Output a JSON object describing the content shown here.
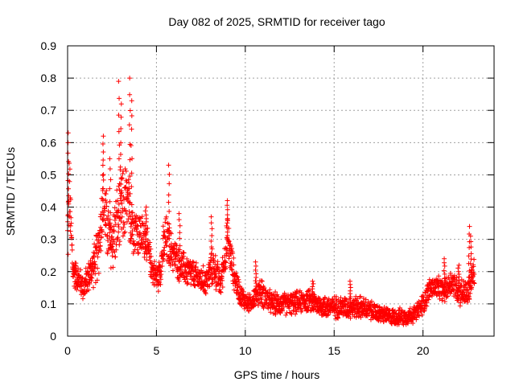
{
  "chart_data": {
    "type": "scatter",
    "title": "Day 082 of 2025, SRMTID for receiver tago",
    "xlabel": "GPS time / hours",
    "ylabel": "SRMTID / TECUs",
    "xlim": [
      0,
      24
    ],
    "ylim": [
      0,
      0.9
    ],
    "grid": true,
    "marker": "+",
    "marker_color": "#ff0000",
    "xticks": [
      0,
      5,
      10,
      15,
      20
    ],
    "xtick_labels": [
      "0",
      "5",
      "10",
      "15",
      "20"
    ],
    "yticks": [
      0,
      0.1,
      0.2,
      0.3,
      0.4,
      0.5,
      0.6,
      0.7,
      0.8,
      0.9
    ],
    "ytick_labels": [
      "0",
      "0.1",
      "0.2",
      "0.3",
      "0.4",
      "0.5",
      "0.6",
      "0.7",
      "0.8",
      "0.9"
    ],
    "series": [
      {
        "name": "SRMTID",
        "profile": {
          "hours": [
            0,
            0.1,
            0.3,
            0.6,
            0.9,
            1.3,
            1.7,
            2.0,
            2.4,
            2.8,
            3.0,
            3.3,
            3.6,
            4.0,
            4.4,
            4.8,
            5.1,
            5.5,
            5.8,
            6.3,
            6.8,
            7.3,
            7.8,
            8.2,
            8.6,
            9.0,
            9.4,
            9.8,
            10.2,
            10.8,
            11.5,
            12.5,
            13.5,
            14.5,
            15.5,
            16.5,
            17.5,
            18.2,
            19.0,
            19.6,
            20.0,
            20.4,
            20.8,
            21.2,
            21.6,
            22.0,
            22.5,
            22.9
          ],
          "median": [
            0.3,
            0.45,
            0.2,
            0.18,
            0.15,
            0.2,
            0.25,
            0.42,
            0.28,
            0.35,
            0.38,
            0.42,
            0.35,
            0.32,
            0.3,
            0.2,
            0.18,
            0.3,
            0.27,
            0.22,
            0.2,
            0.18,
            0.17,
            0.22,
            0.16,
            0.3,
            0.18,
            0.12,
            0.1,
            0.14,
            0.1,
            0.1,
            0.11,
            0.09,
            0.09,
            0.09,
            0.07,
            0.06,
            0.06,
            0.07,
            0.1,
            0.15,
            0.15,
            0.14,
            0.17,
            0.14,
            0.13,
            0.2
          ],
          "spread": [
            0.15,
            0.15,
            0.06,
            0.05,
            0.05,
            0.06,
            0.1,
            0.12,
            0.12,
            0.14,
            0.15,
            0.14,
            0.1,
            0.09,
            0.07,
            0.05,
            0.05,
            0.1,
            0.07,
            0.06,
            0.06,
            0.05,
            0.05,
            0.07,
            0.05,
            0.08,
            0.05,
            0.04,
            0.03,
            0.05,
            0.04,
            0.04,
            0.04,
            0.04,
            0.04,
            0.04,
            0.03,
            0.03,
            0.03,
            0.03,
            0.04,
            0.04,
            0.04,
            0.04,
            0.05,
            0.05,
            0.05,
            0.06
          ]
        },
        "sample_interval_hours": 0.01,
        "peaks": [
          {
            "x": 0.05,
            "y": 0.63
          },
          {
            "x": 0.4,
            "y": 0.22
          },
          {
            "x": 2.0,
            "y": 0.62
          },
          {
            "x": 2.4,
            "y": 0.55
          },
          {
            "x": 2.9,
            "y": 0.79
          },
          {
            "x": 3.0,
            "y": 0.72
          },
          {
            "x": 3.5,
            "y": 0.8
          },
          {
            "x": 3.6,
            "y": 0.73
          },
          {
            "x": 4.4,
            "y": 0.4
          },
          {
            "x": 5.7,
            "y": 0.53
          },
          {
            "x": 6.3,
            "y": 0.38
          },
          {
            "x": 8.1,
            "y": 0.37
          },
          {
            "x": 9.0,
            "y": 0.42
          },
          {
            "x": 10.6,
            "y": 0.23
          },
          {
            "x": 13.8,
            "y": 0.17
          },
          {
            "x": 15.9,
            "y": 0.17
          },
          {
            "x": 21.2,
            "y": 0.24
          },
          {
            "x": 22.0,
            "y": 0.22
          },
          {
            "x": 22.6,
            "y": 0.34
          },
          {
            "x": 22.7,
            "y": 0.31
          }
        ]
      }
    ]
  }
}
